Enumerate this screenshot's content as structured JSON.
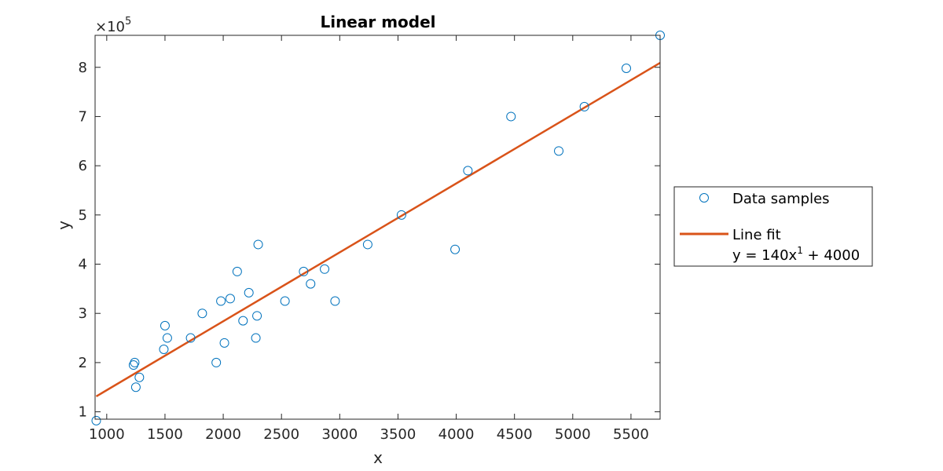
{
  "chart_data": {
    "type": "scatter",
    "title": "Linear model",
    "xlabel": "x",
    "ylabel": "y",
    "xlim": [
      900,
      5750
    ],
    "ylim": [
      85000,
      865000
    ],
    "x_ticks": [
      1000,
      1500,
      2000,
      2500,
      3000,
      3500,
      4000,
      4500,
      5000,
      5500
    ],
    "y_ticks": [
      100000,
      200000,
      300000,
      400000,
      500000,
      600000,
      700000,
      800000
    ],
    "y_tick_labels": [
      "1",
      "2",
      "3",
      "4",
      "5",
      "6",
      "7",
      "8"
    ],
    "y_exponent": {
      "base": "×10",
      "power": "5"
    },
    "grid": false,
    "legend_position": "outside-right",
    "colors": {
      "samples": "#0072BD",
      "fit": "#D95319"
    },
    "series": [
      {
        "name": "Data samples",
        "marker": "circle",
        "x": [
          910,
          1230,
          1240,
          1250,
          1280,
          1490,
          1500,
          1520,
          1720,
          1820,
          1940,
          1980,
          2010,
          2060,
          2120,
          2170,
          2220,
          2280,
          2290,
          2300,
          2530,
          2690,
          2750,
          2870,
          2960,
          3240,
          3530,
          3990,
          4100,
          4470,
          4880,
          5100,
          5460,
          5750
        ],
        "y": [
          82000,
          195000,
          200000,
          150000,
          170000,
          227000,
          275000,
          250000,
          250000,
          300000,
          200000,
          325000,
          240000,
          330000,
          385000,
          285000,
          342000,
          250000,
          295000,
          440000,
          325000,
          385000,
          360000,
          390000,
          325000,
          440000,
          500000,
          430000,
          590000,
          700000,
          630000,
          720000,
          798000,
          865000
        ]
      },
      {
        "name": "Line fit",
        "equation": {
          "prefix": "y = 140x",
          "power": "1",
          "suffix": " + 4000"
        },
        "x": [
          910,
          5750
        ],
        "y": [
          131400,
          809000
        ]
      }
    ]
  }
}
